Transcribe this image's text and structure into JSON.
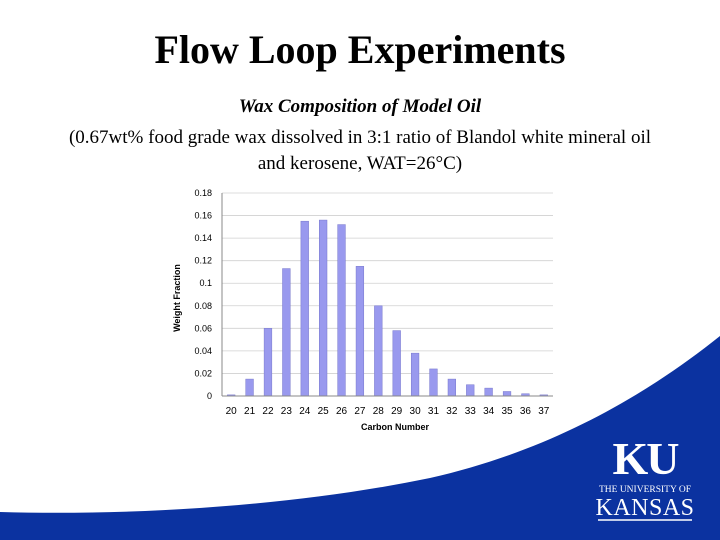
{
  "slide": {
    "title": "Flow Loop Experiments",
    "subtitle": "Wax Composition of Model Oil",
    "caption": "(0.67wt% food grade wax dissolved in 3:1 ratio of Blandol white mineral oil and kerosene, WAT=26°C)"
  },
  "logo": {
    "monogram": "KU",
    "line1": "THE UNIVERSITY OF",
    "line2": "KANSAS"
  },
  "colors": {
    "bar": "#9999ee",
    "bar_edge": "#7777cc",
    "grid": "#d0d0d0",
    "swoosh": "#0b32a0"
  },
  "chart_data": {
    "type": "bar",
    "xlabel": "Carbon Number",
    "ylabel": "Weight Fraction",
    "ylim": [
      0,
      0.18
    ],
    "yticks": [
      "0",
      "0.02",
      "0.04",
      "0.06",
      "0.08",
      "0.1",
      "0.12",
      "0.14",
      "0.16",
      "0.18"
    ],
    "categories": [
      "20",
      "21",
      "22",
      "23",
      "24",
      "25",
      "26",
      "27",
      "28",
      "29",
      "30",
      "31",
      "32",
      "33",
      "34",
      "35",
      "36",
      "37"
    ],
    "values": [
      0.001,
      0.015,
      0.06,
      0.113,
      0.155,
      0.156,
      0.152,
      0.115,
      0.08,
      0.058,
      0.038,
      0.024,
      0.015,
      0.01,
      0.007,
      0.004,
      0.002,
      0.001
    ],
    "grid": true,
    "legend": "none"
  }
}
